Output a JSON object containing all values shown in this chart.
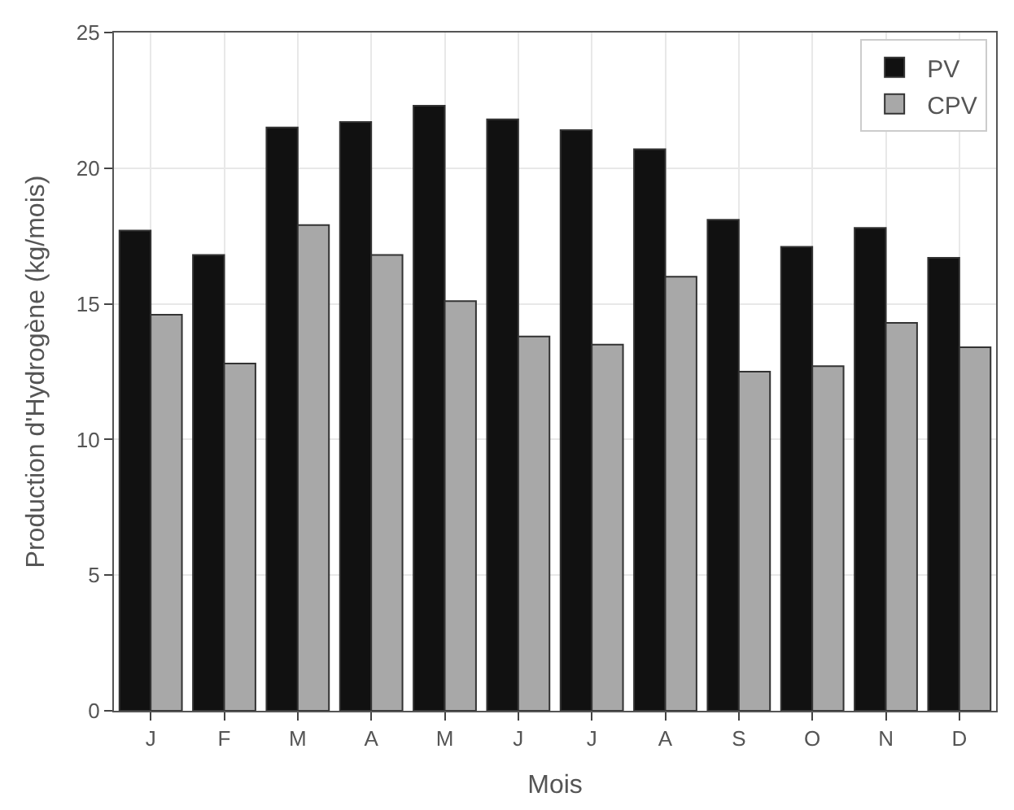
{
  "chart_data": {
    "type": "bar",
    "xlabel": "Mois",
    "ylabel": "Production d'Hydrogène (kg/mois)",
    "categories": [
      "J",
      "F",
      "M",
      "A",
      "M",
      "J",
      "J",
      "A",
      "S",
      "O",
      "N",
      "D"
    ],
    "series": [
      {
        "name": "PV",
        "color": "#111111",
        "values": [
          17.7,
          16.8,
          21.5,
          21.7,
          22.3,
          21.8,
          21.4,
          20.7,
          18.1,
          17.1,
          17.8,
          16.7
        ]
      },
      {
        "name": "CPV",
        "color": "#a8a8a8",
        "values": [
          14.6,
          12.8,
          17.9,
          16.8,
          15.1,
          13.8,
          13.5,
          16.0,
          12.5,
          12.7,
          14.3,
          13.4
        ]
      }
    ],
    "ylim": [
      0,
      25
    ],
    "yticks": [
      0,
      5,
      10,
      15,
      20,
      25
    ],
    "grid": true,
    "legend": "top right"
  }
}
